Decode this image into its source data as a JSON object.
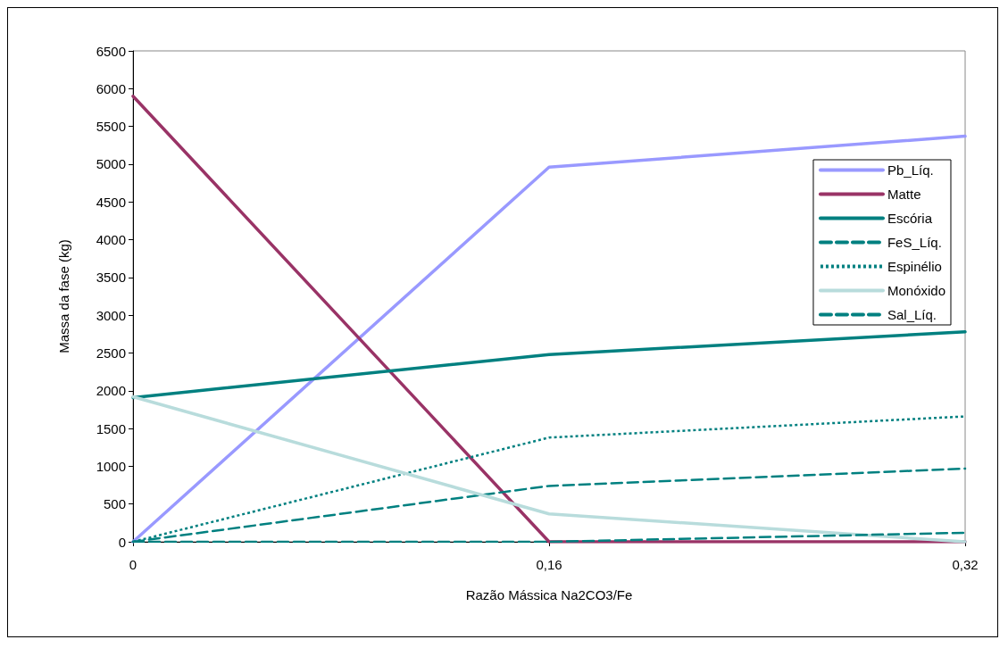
{
  "chart_data": {
    "type": "line",
    "xlabel": "Razão Mássica Na2CO3/Fe",
    "ylabel": "Massa da fase (kg)",
    "categories": [
      "0",
      "0,16",
      "0,32"
    ],
    "series": [
      {
        "name": "Pb_Líq.",
        "color": "#9999ff",
        "values": [
          0,
          4960,
          5370
        ],
        "line_style": "solid"
      },
      {
        "name": "Matte",
        "color": "#993366",
        "values": [
          5900,
          0,
          0
        ],
        "line_style": "solid"
      },
      {
        "name": "Escória",
        "color": "#008080",
        "values": [
          1910,
          2480,
          2780
        ],
        "line_style": "solid"
      },
      {
        "name": "FeS_Líq.",
        "color": "#008080",
        "values": [
          0,
          740,
          970
        ],
        "line_style": "dashed"
      },
      {
        "name": "Espinélio",
        "color": "#008080",
        "values": [
          0,
          1380,
          1660
        ],
        "line_style": "dotted"
      },
      {
        "name": "Monóxido",
        "color": "#b8dcdc",
        "values": [
          1920,
          370,
          0
        ],
        "line_style": "solid"
      },
      {
        "name": "Sal_Líq.",
        "color": "#008080",
        "values": [
          0,
          0,
          120
        ],
        "line_style": "dashed"
      }
    ],
    "ylim": [
      0,
      6500
    ],
    "yticks": [
      0,
      500,
      1000,
      1500,
      2000,
      2500,
      3000,
      3500,
      4000,
      4500,
      5000,
      5500,
      6000,
      6500
    ],
    "grid": false,
    "legend": "top right",
    "marker": "none"
  }
}
